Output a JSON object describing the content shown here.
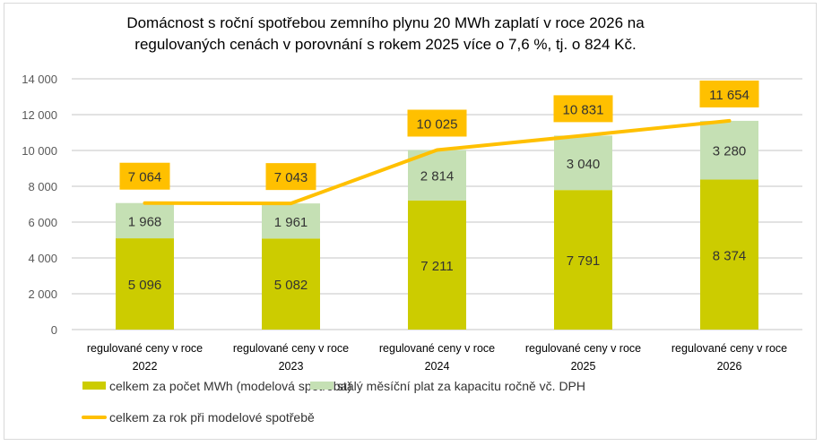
{
  "chart_data": {
    "type": "bar",
    "stacked": true,
    "title": "Domácnost s roční spotřebou zemního plynu 20 MWh zaplatí v roce 2026 na regulovaných cenách v porovnání s rokem 2025 více o 7,6 %, tj. o 824 Kč.",
    "title_lines": [
      "Domácnost s roční spotřebou zemního plynu 20 MWh zaplatí v roce 2026 na",
      "regulovaných cenách v porovnání s rokem 2025 více o 7,6 %, tj. o 824 Kč."
    ],
    "categories": [
      [
        "regulované ceny v roce",
        "2022"
      ],
      [
        "regulované ceny v roce",
        "2023"
      ],
      [
        "regulované ceny v roce",
        "2024"
      ],
      [
        "regulované ceny v roce",
        "2025"
      ],
      [
        "regulované ceny v roce",
        "2026"
      ]
    ],
    "ylim": [
      0,
      14000
    ],
    "yticks": [
      0,
      2000,
      4000,
      6000,
      8000,
      10000,
      12000,
      14000
    ],
    "ytick_labels": [
      "0",
      "2 000",
      "4 000",
      "6 000",
      "8 000",
      "10 000",
      "12 000",
      "14 000"
    ],
    "grid": true,
    "legend_position": "bottom-left",
    "series": [
      {
        "name": "celkem za počet MWh (modelová spotřeba)",
        "type": "bar",
        "color": "#CCCC00",
        "values": [
          5096,
          5082,
          7211,
          7791,
          8374
        ],
        "labels": [
          "5 096",
          "5 082",
          "7 211",
          "7 791",
          "8 374"
        ]
      },
      {
        "name": "stálý měsíční plat za kapacitu ročně vč. DPH",
        "type": "bar",
        "color": "#C5E0B4",
        "values": [
          1968,
          1961,
          2814,
          3040,
          3280
        ],
        "labels": [
          "1 968",
          "1 961",
          "2 814",
          "3 040",
          "3 280"
        ]
      },
      {
        "name": "celkem za rok při modelové spotřebě",
        "type": "line",
        "color": "#FFC000",
        "values": [
          7064,
          7043,
          10025,
          10831,
          11654
        ],
        "labels": [
          "7 064",
          "7 043",
          "10 025",
          "10 831",
          "11 654"
        ]
      }
    ],
    "colors": {
      "grid": "#d9d9d9",
      "label_box": "#FFC000"
    }
  }
}
